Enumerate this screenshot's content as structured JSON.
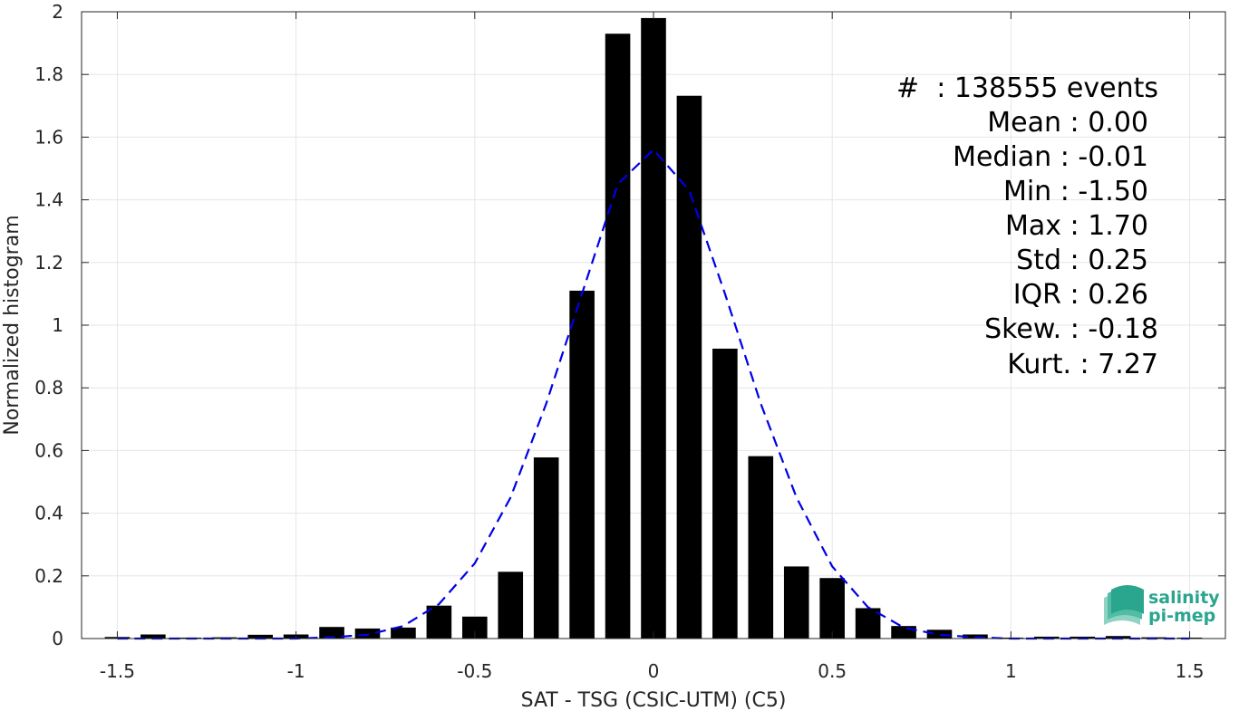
{
  "chart_data": {
    "type": "bar",
    "xlabel": "SAT - TSG (CSIC-UTM) (C5)",
    "ylabel": "Normalized histogram",
    "xlim": [
      -1.6,
      1.6
    ],
    "ylim": [
      0,
      2
    ],
    "xticks": [
      -1.5,
      -1,
      -0.5,
      0,
      0.5,
      1,
      1.5
    ],
    "xtick_labels": [
      "-1.5",
      "-1",
      "-0.5",
      "0",
      "0.5",
      "1",
      "1.5"
    ],
    "yticks": [
      0,
      0.2,
      0.4,
      0.6,
      0.8,
      1,
      1.2,
      1.4,
      1.6,
      1.8,
      2
    ],
    "ytick_labels": [
      "0",
      "0.2",
      "0.4",
      "0.6",
      "0.8",
      "1",
      "1.2",
      "1.4",
      "1.6",
      "1.8",
      "2"
    ],
    "grid": true,
    "bar_color": "#000000",
    "bar_width": 0.07,
    "bins_x": [
      -1.5,
      -1.4,
      -1.3,
      -1.2,
      -1.1,
      -1.0,
      -0.9,
      -0.8,
      -0.7,
      -0.6,
      -0.5,
      -0.4,
      -0.3,
      -0.2,
      -0.1,
      0.0,
      0.1,
      0.2,
      0.3,
      0.4,
      0.5,
      0.6,
      0.7,
      0.8,
      0.9,
      1.0,
      1.1,
      1.2,
      1.3,
      1.4,
      1.5
    ],
    "values": [
      0.005,
      0.013,
      0.003,
      0.004,
      0.012,
      0.013,
      0.037,
      0.032,
      0.035,
      0.105,
      0.07,
      0.213,
      0.578,
      1.11,
      1.93,
      1.98,
      1.732,
      0.925,
      0.582,
      0.23,
      0.193,
      0.097,
      0.04,
      0.028,
      0.013,
      0.003,
      0.006,
      0.006,
      0.008,
      0.004,
      0.003
    ],
    "fit_curve": {
      "style": "dashed",
      "color": "#0000e6",
      "x": [
        -1.5,
        -1.4,
        -1.3,
        -1.2,
        -1.1,
        -1.0,
        -0.9,
        -0.8,
        -0.7,
        -0.6,
        -0.5,
        -0.4,
        -0.3,
        -0.2,
        -0.1,
        0.0,
        0.1,
        0.2,
        0.3,
        0.4,
        0.5,
        0.6,
        0.7,
        0.8,
        0.9,
        1.0,
        1.1,
        1.2,
        1.3,
        1.4,
        1.5
      ],
      "y": [
        0.0,
        0.0,
        0.0,
        0.0,
        0.0,
        0.0,
        0.004,
        0.012,
        0.04,
        0.11,
        0.24,
        0.45,
        0.75,
        1.1,
        1.45,
        1.56,
        1.43,
        1.1,
        0.75,
        0.45,
        0.23,
        0.1,
        0.035,
        0.012,
        0.004,
        0.0,
        0.0,
        0.0,
        0.0,
        0.0,
        0.0
      ]
    },
    "annotations": [
      "#  : 138555 events",
      "Mean : 0.00",
      "Median : -0.01",
      "Min : -1.50",
      "Max : 1.70",
      "Std : 0.25",
      "IQR : 0.26",
      "Skew. : -0.18",
      "Kurt. : 7.27"
    ]
  },
  "logo": {
    "line1": "salinity",
    "line2": "pi-mep",
    "color": "#2aa58e",
    "icon": "wave-stack-icon"
  }
}
